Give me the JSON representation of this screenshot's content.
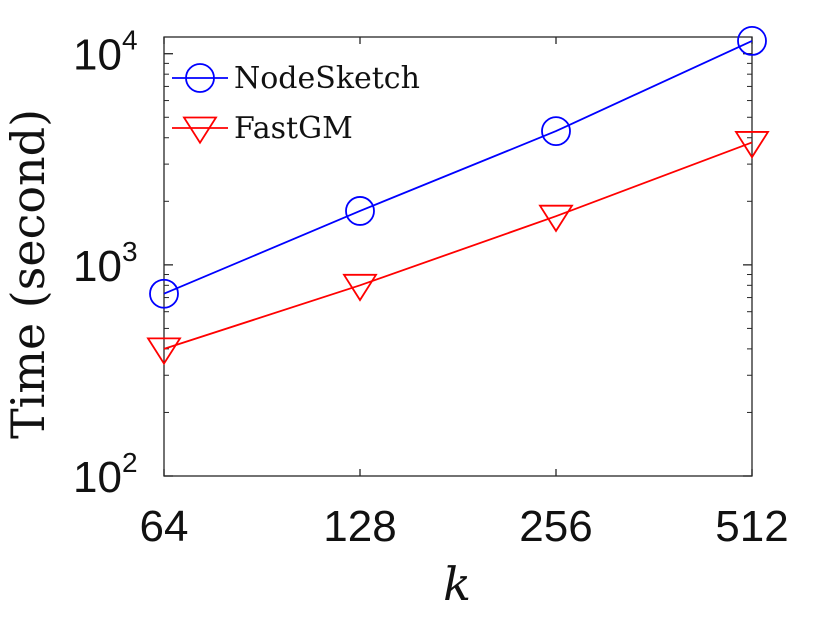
{
  "chart_data": {
    "type": "line",
    "x_scale": "log2",
    "y_scale": "log10",
    "categories": [
      "64",
      "128",
      "256",
      "512"
    ],
    "x": [
      64,
      128,
      256,
      512
    ],
    "xlabel": "k",
    "ylabel": "Time (second)",
    "xlim": [
      64,
      512
    ],
    "ylim": [
      100,
      12000
    ],
    "y_ticks": [
      {
        "value": 100,
        "base": "10",
        "exp": "2"
      },
      {
        "value": 1000,
        "base": "10",
        "exp": "3"
      },
      {
        "value": 10000,
        "base": "10",
        "exp": "4"
      }
    ],
    "grid": false,
    "legend_position": "top-left",
    "series": [
      {
        "name": "NodeSketch",
        "marker": "circle",
        "color": "#0000ff",
        "values": [
          730,
          1800,
          4300,
          11500
        ]
      },
      {
        "name": "FastGM",
        "marker": "triangle-down",
        "color": "#ff0000",
        "values": [
          400,
          800,
          1700,
          3800
        ]
      }
    ]
  }
}
